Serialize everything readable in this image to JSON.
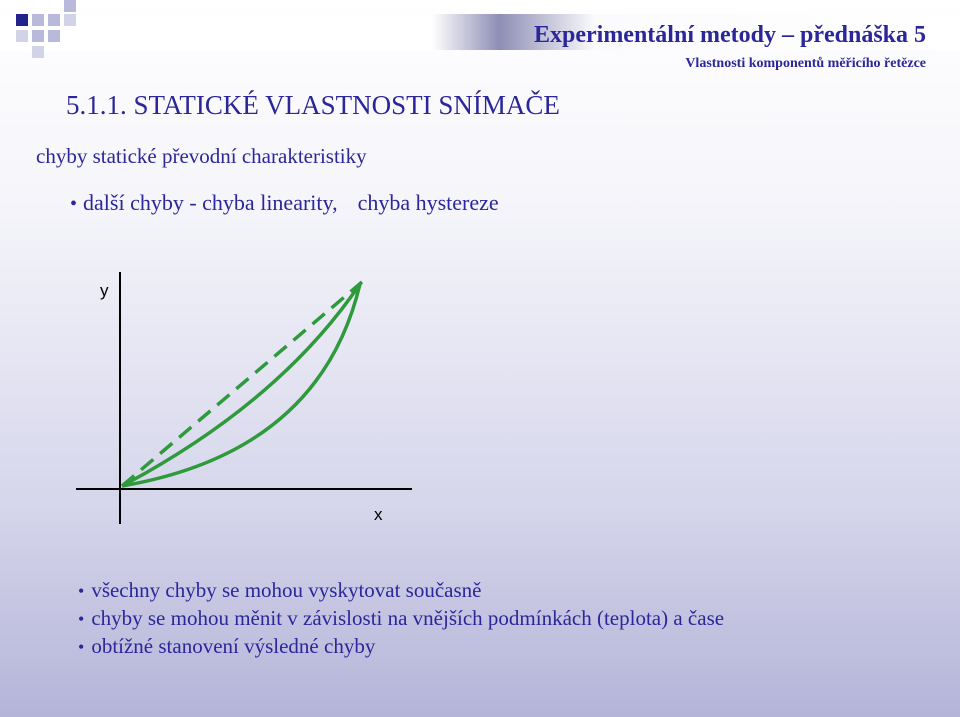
{
  "header": {
    "title": "Experimentální metody – přednáška 5",
    "subtitle": "Vlastnosti komponentů měřicího řetězce"
  },
  "section_title": "5.1.1. STATICKÉ VLASTNOSTI SNÍMAČE",
  "subheading": "chyby statické převodní charakteristiky",
  "bullet": {
    "prefix": "další chyby - ",
    "item1": "chyba linearity,",
    "item2": "chyba hystereze"
  },
  "diagram": {
    "y_axis_label": "y",
    "x_axis_label": "x",
    "line_color": "#2e9a3c"
  },
  "bottom_bullets": [
    "všechny chyby se mohou vyskytovat současně",
    "chyby se mohou měnit v závislosti na vnějších podmínkách (teplota) a čase",
    "obtížné stanovení výsledné chyby"
  ],
  "colors": {
    "text": "#2b2699",
    "curve": "#2e9a3c"
  }
}
